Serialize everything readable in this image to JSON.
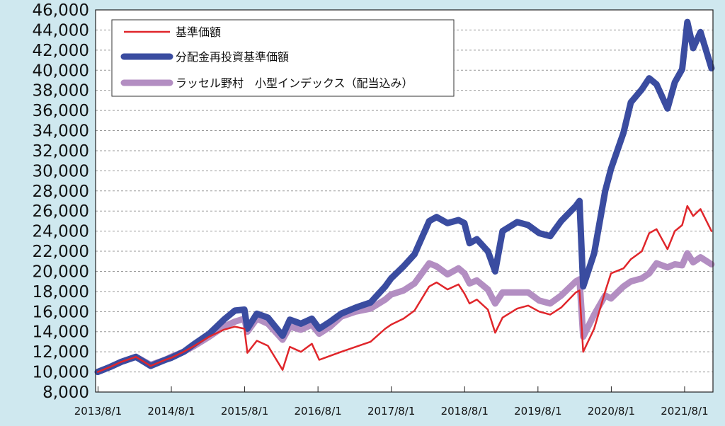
{
  "chart_data": {
    "type": "line",
    "title": "",
    "xlabel": "",
    "ylabel": "",
    "ylim": [
      8000,
      46000
    ],
    "y_ticks": [
      "8,000",
      "10,000",
      "12,000",
      "14,000",
      "16,000",
      "18,000",
      "20,000",
      "22,000",
      "24,000",
      "26,000",
      "28,000",
      "30,000",
      "32,000",
      "34,000",
      "36,000",
      "38,000",
      "40,000",
      "42,000",
      "44,000",
      "46,000"
    ],
    "x_ticks": [
      "2013/8/1",
      "2014/8/1",
      "2015/8/1",
      "2016/8/1",
      "2017/8/1",
      "2018/8/1",
      "2019/8/1",
      "2020/8/1",
      "2021/8/1"
    ],
    "x_range": [
      2013.55,
      2021.97
    ],
    "grid": true,
    "legend_position": "top-left",
    "series": [
      {
        "name": "基準価額",
        "color": "#e0262b",
        "x": [
          2013.58,
          2013.75,
          2013.9,
          2014.1,
          2014.3,
          2014.5,
          2014.58,
          2014.75,
          2014.9,
          2015.1,
          2015.3,
          2015.45,
          2015.58,
          2015.62,
          2015.75,
          2015.9,
          2016.1,
          2016.2,
          2016.35,
          2016.5,
          2016.6,
          2016.75,
          2016.9,
          2017.1,
          2017.3,
          2017.5,
          2017.58,
          2017.75,
          2017.9,
          2018.1,
          2018.2,
          2018.35,
          2018.5,
          2018.58,
          2018.65,
          2018.75,
          2018.9,
          2019.0,
          2019.1,
          2019.3,
          2019.45,
          2019.6,
          2019.75,
          2019.9,
          2020.1,
          2020.15,
          2020.2,
          2020.35,
          2020.5,
          2020.58,
          2020.75,
          2020.85,
          2021.0,
          2021.1,
          2021.2,
          2021.35,
          2021.45,
          2021.55,
          2021.62,
          2021.7,
          2021.8,
          2021.95
        ],
        "values": [
          10000,
          10500,
          11000,
          11500,
          10600,
          11200,
          11400,
          12000,
          12600,
          13500,
          14200,
          14500,
          14300,
          11900,
          13100,
          12600,
          10200,
          12500,
          12000,
          12800,
          11200,
          11600,
          12000,
          12500,
          13000,
          14300,
          14700,
          15300,
          16100,
          18500,
          18900,
          18200,
          18700,
          17800,
          16800,
          17200,
          16200,
          13900,
          15400,
          16300,
          16600,
          16000,
          15700,
          16400,
          17900,
          18100,
          12000,
          14300,
          18000,
          19800,
          20300,
          21200,
          22000,
          23800,
          24200,
          22200,
          24000,
          24600,
          26500,
          25500,
          26200,
          24000
        ]
      },
      {
        "name": "分配金再投資基準価額",
        "color": "#3a4ca0",
        "x": [
          2013.58,
          2013.75,
          2013.9,
          2014.1,
          2014.3,
          2014.5,
          2014.58,
          2014.75,
          2014.9,
          2015.1,
          2015.3,
          2015.45,
          2015.58,
          2015.62,
          2015.75,
          2015.9,
          2016.1,
          2016.2,
          2016.35,
          2016.5,
          2016.6,
          2016.75,
          2016.9,
          2017.1,
          2017.3,
          2017.5,
          2017.58,
          2017.75,
          2017.9,
          2018.1,
          2018.2,
          2018.35,
          2018.5,
          2018.58,
          2018.65,
          2018.75,
          2018.9,
          2019.0,
          2019.1,
          2019.3,
          2019.45,
          2019.6,
          2019.75,
          2019.9,
          2020.1,
          2020.15,
          2020.2,
          2020.35,
          2020.5,
          2020.58,
          2020.75,
          2020.85,
          2021.0,
          2021.1,
          2021.2,
          2021.35,
          2021.45,
          2021.55,
          2021.62,
          2021.7,
          2021.8,
          2021.95
        ],
        "values": [
          10000,
          10500,
          11000,
          11500,
          10600,
          11200,
          11400,
          12000,
          12800,
          13800,
          15200,
          16100,
          16200,
          14300,
          15800,
          15400,
          13600,
          15200,
          14800,
          15300,
          14300,
          15000,
          15800,
          16400,
          16900,
          18500,
          19300,
          20500,
          21700,
          25000,
          25400,
          24800,
          25100,
          24800,
          22800,
          23200,
          22000,
          20000,
          24000,
          24900,
          24600,
          23800,
          23500,
          25000,
          26500,
          27000,
          18500,
          21800,
          28000,
          30200,
          33800,
          36800,
          38100,
          39200,
          38600,
          36200,
          38800,
          40100,
          44800,
          42200,
          43800,
          40200
        ]
      },
      {
        "name": "ラッセル野村　小型インデックス（配当込み）",
        "color": "#b38ec2",
        "x": [
          2013.58,
          2013.75,
          2013.9,
          2014.1,
          2014.3,
          2014.5,
          2014.58,
          2014.75,
          2014.9,
          2015.1,
          2015.3,
          2015.45,
          2015.58,
          2015.62,
          2015.75,
          2015.9,
          2016.1,
          2016.2,
          2016.35,
          2016.5,
          2016.6,
          2016.75,
          2016.9,
          2017.1,
          2017.3,
          2017.5,
          2017.58,
          2017.75,
          2017.9,
          2018.1,
          2018.2,
          2018.35,
          2018.5,
          2018.58,
          2018.65,
          2018.75,
          2018.9,
          2019.0,
          2019.1,
          2019.3,
          2019.45,
          2019.6,
          2019.75,
          2019.9,
          2020.1,
          2020.15,
          2020.2,
          2020.35,
          2020.5,
          2020.58,
          2020.75,
          2020.85,
          2021.0,
          2021.1,
          2021.2,
          2021.35,
          2021.45,
          2021.55,
          2021.62,
          2021.7,
          2021.8,
          2021.95
        ],
        "values": [
          10000,
          10500,
          11000,
          11500,
          10700,
          11200,
          11500,
          12000,
          12600,
          13500,
          14500,
          15000,
          15300,
          14000,
          15300,
          14800,
          13200,
          14500,
          14200,
          14700,
          13800,
          14500,
          15500,
          16000,
          16300,
          17200,
          17700,
          18100,
          18800,
          20800,
          20500,
          19700,
          20300,
          19800,
          18800,
          19100,
          18200,
          16800,
          17900,
          17900,
          17900,
          17100,
          16800,
          17600,
          19000,
          19200,
          13500,
          15700,
          17600,
          17300,
          18500,
          19000,
          19300,
          19800,
          20800,
          20400,
          20700,
          20600,
          21800,
          20900,
          21400,
          20700
        ]
      }
    ]
  }
}
